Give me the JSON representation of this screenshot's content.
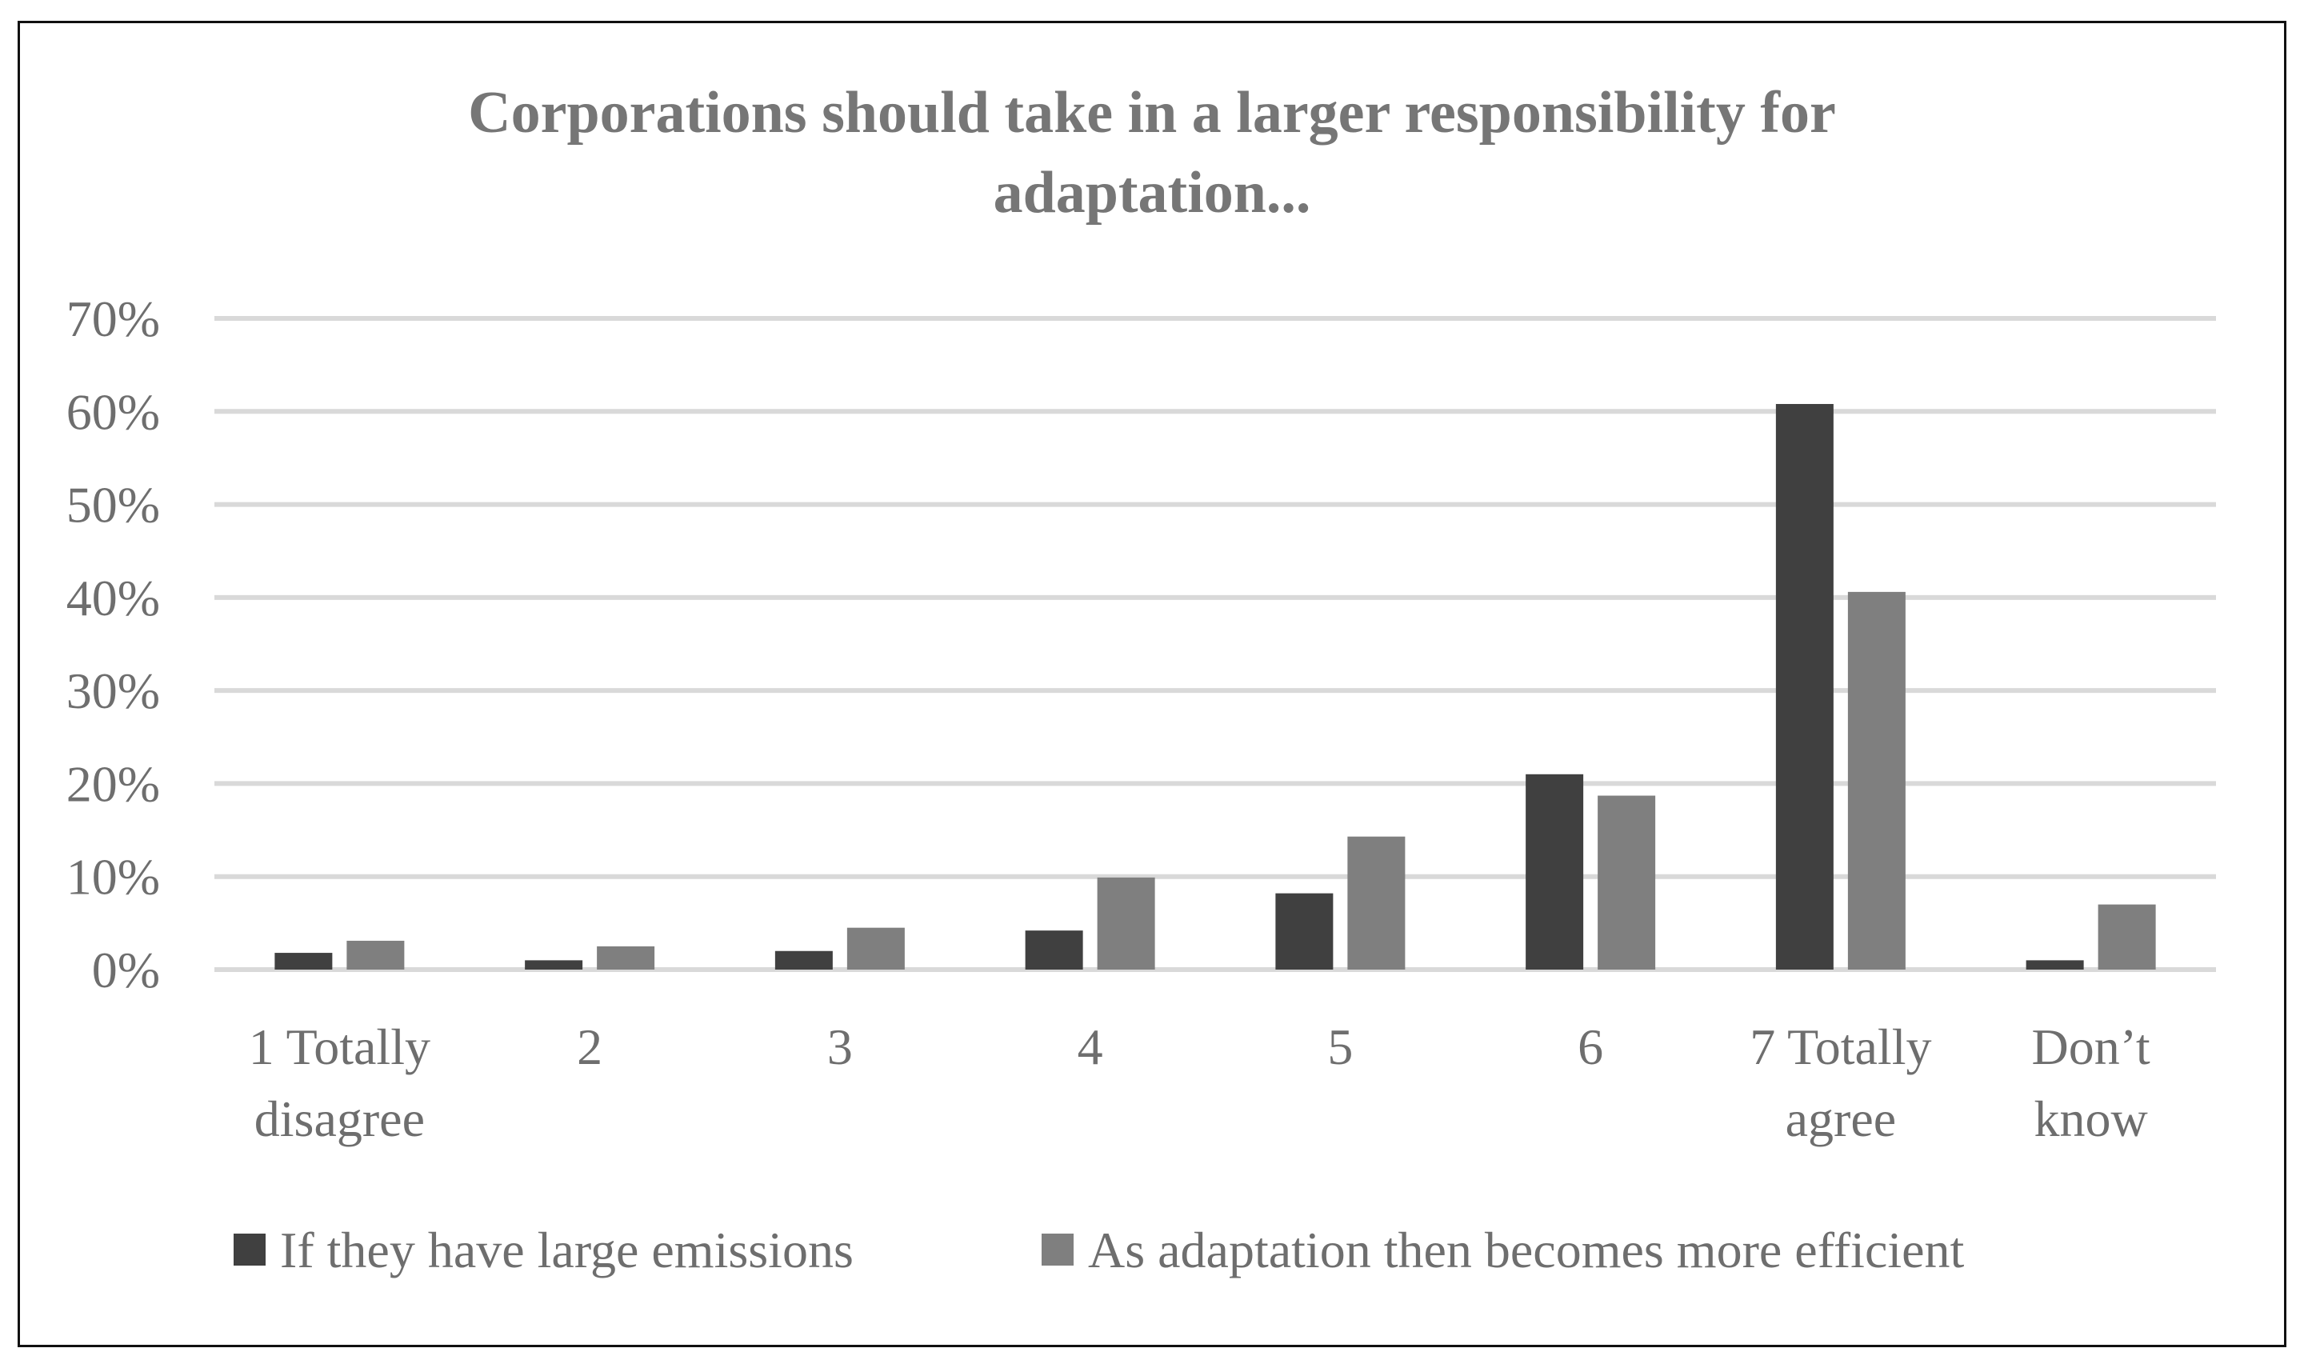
{
  "chart_data": {
    "type": "bar",
    "title_lines": [
      "Corporations should take in a larger responsibility for",
      "adaptation..."
    ],
    "categories": [
      [
        "1 Totally",
        "disagree"
      ],
      [
        "2"
      ],
      [
        "3"
      ],
      [
        "4"
      ],
      [
        "5"
      ],
      [
        "6"
      ],
      [
        "7 Totally",
        "agree"
      ],
      [
        "Don’t",
        "know"
      ]
    ],
    "series": [
      {
        "name": "If they have large emissions",
        "color": "#404040",
        "values": [
          1.8,
          1.0,
          2.0,
          4.2,
          8.2,
          21.0,
          60.8,
          1.0
        ]
      },
      {
        "name": "As adaptation then becomes more efficient",
        "color": "#7f7f7f",
        "values": [
          3.1,
          2.5,
          4.5,
          9.9,
          14.3,
          18.7,
          40.6,
          7.0
        ]
      }
    ],
    "ylim": [
      0,
      70
    ],
    "yticks": [
      0,
      10,
      20,
      30,
      40,
      50,
      60,
      70
    ],
    "ytick_labels": [
      "0%",
      "10%",
      "20%",
      "30%",
      "40%",
      "50%",
      "60%",
      "70%"
    ],
    "grid": true,
    "legend_position": "bottom",
    "xlabel": "",
    "ylabel": ""
  }
}
